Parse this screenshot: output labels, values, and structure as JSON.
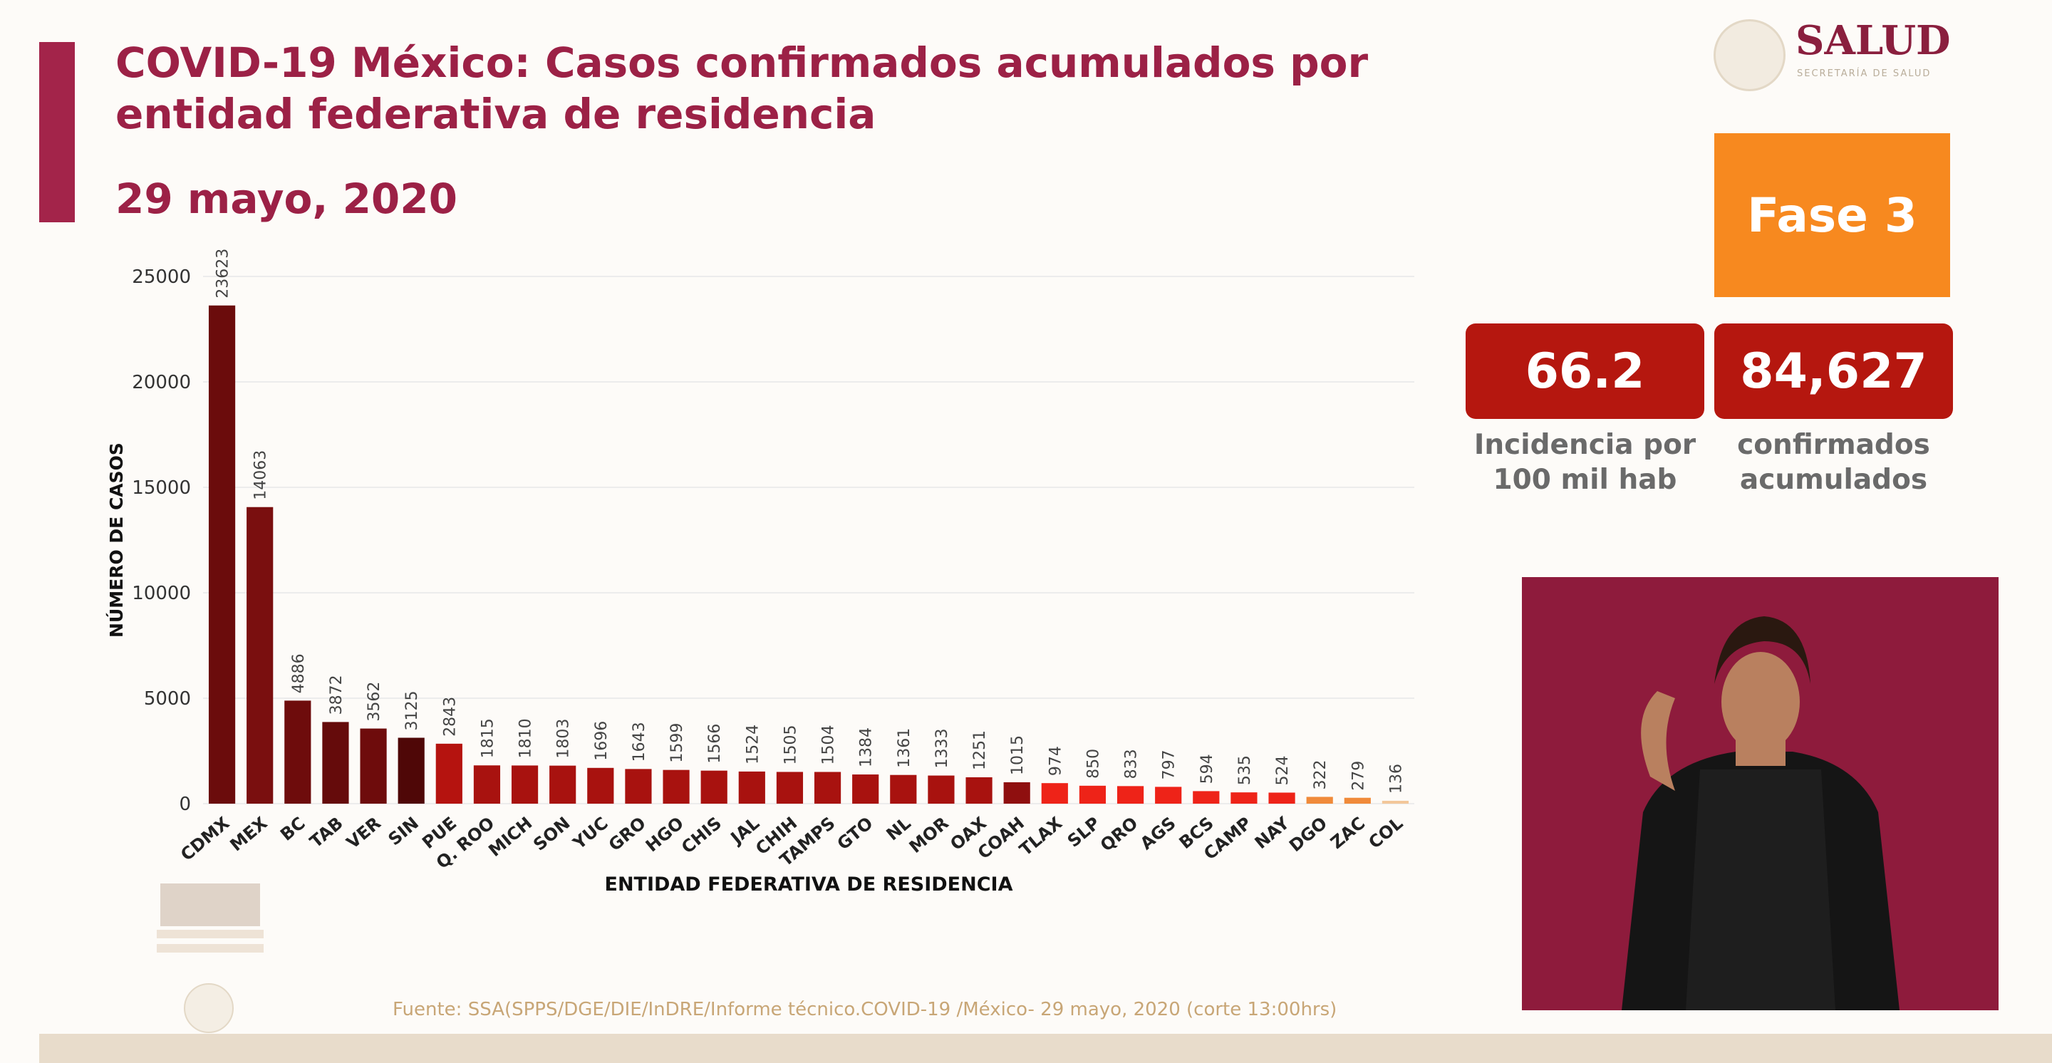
{
  "header": {
    "title": "COVID-19 México: Casos confirmados acumulados por entidad federativa de residencia",
    "date": "29 mayo, 2020"
  },
  "logo": {
    "name": "SALUD",
    "subtitle": "SECRETARÍA DE SALUD"
  },
  "phase": {
    "label": "Fase 3",
    "color": "#f7891f"
  },
  "kpis": [
    {
      "value": "66.2",
      "label_line1": "Incidencia por",
      "label_line2": "100 mil hab"
    },
    {
      "value": "84,627",
      "label_line1": "confirmados",
      "label_line2": "acumulados"
    }
  ],
  "footer": {
    "source": "Fuente: SSA(SPPS/DGE/DIE/InDRE/Informe técnico.COVID-19 /México- 29 mayo, 2020 (corte 13:00hrs)"
  },
  "chart_data": {
    "type": "bar",
    "title": "",
    "xlabel": "ENTIDAD FEDERATIVA DE RESIDENCIA",
    "ylabel": "NÚMERO DE CASOS",
    "ylim": [
      0,
      25000
    ],
    "yticks": [
      0,
      5000,
      10000,
      15000,
      20000,
      25000
    ],
    "grid": true,
    "categories": [
      "CDMX",
      "MEX",
      "BC",
      "TAB",
      "VER",
      "SIN",
      "PUE",
      "Q. ROO",
      "MICH",
      "SON",
      "YUC",
      "GRO",
      "HGO",
      "CHIS",
      "JAL",
      "CHIH",
      "TAMPS",
      "GTO",
      "NL",
      "MOR",
      "OAX",
      "COAH",
      "TLAX",
      "SLP",
      "QRO",
      "AGS",
      "BCS",
      "CAMP",
      "NAY",
      "DGO",
      "ZAC",
      "COL"
    ],
    "values": [
      23623,
      14063,
      4886,
      3872,
      3562,
      3125,
      2843,
      1815,
      1810,
      1803,
      1696,
      1643,
      1599,
      1566,
      1524,
      1505,
      1504,
      1384,
      1361,
      1333,
      1251,
      1015,
      974,
      850,
      833,
      797,
      594,
      535,
      524,
      322,
      279,
      136
    ],
    "colors": [
      "#6b0c0c",
      "#7a0f0f",
      "#6e0c0c",
      "#650b0b",
      "#6e0c0c",
      "#4f0707",
      "#b5130f",
      "#a8120f",
      "#a8120f",
      "#a8120f",
      "#a8120f",
      "#a8120f",
      "#a8120f",
      "#a8120f",
      "#a8120f",
      "#a8120f",
      "#a8120f",
      "#a8120f",
      "#a8120f",
      "#a8120f",
      "#a8120f",
      "#8f0f0f",
      "#ee2318",
      "#ee2318",
      "#ee2318",
      "#ee2318",
      "#ee2318",
      "#ee2318",
      "#ee2318",
      "#f08a3a",
      "#f08a3a",
      "#f3c79a"
    ]
  }
}
